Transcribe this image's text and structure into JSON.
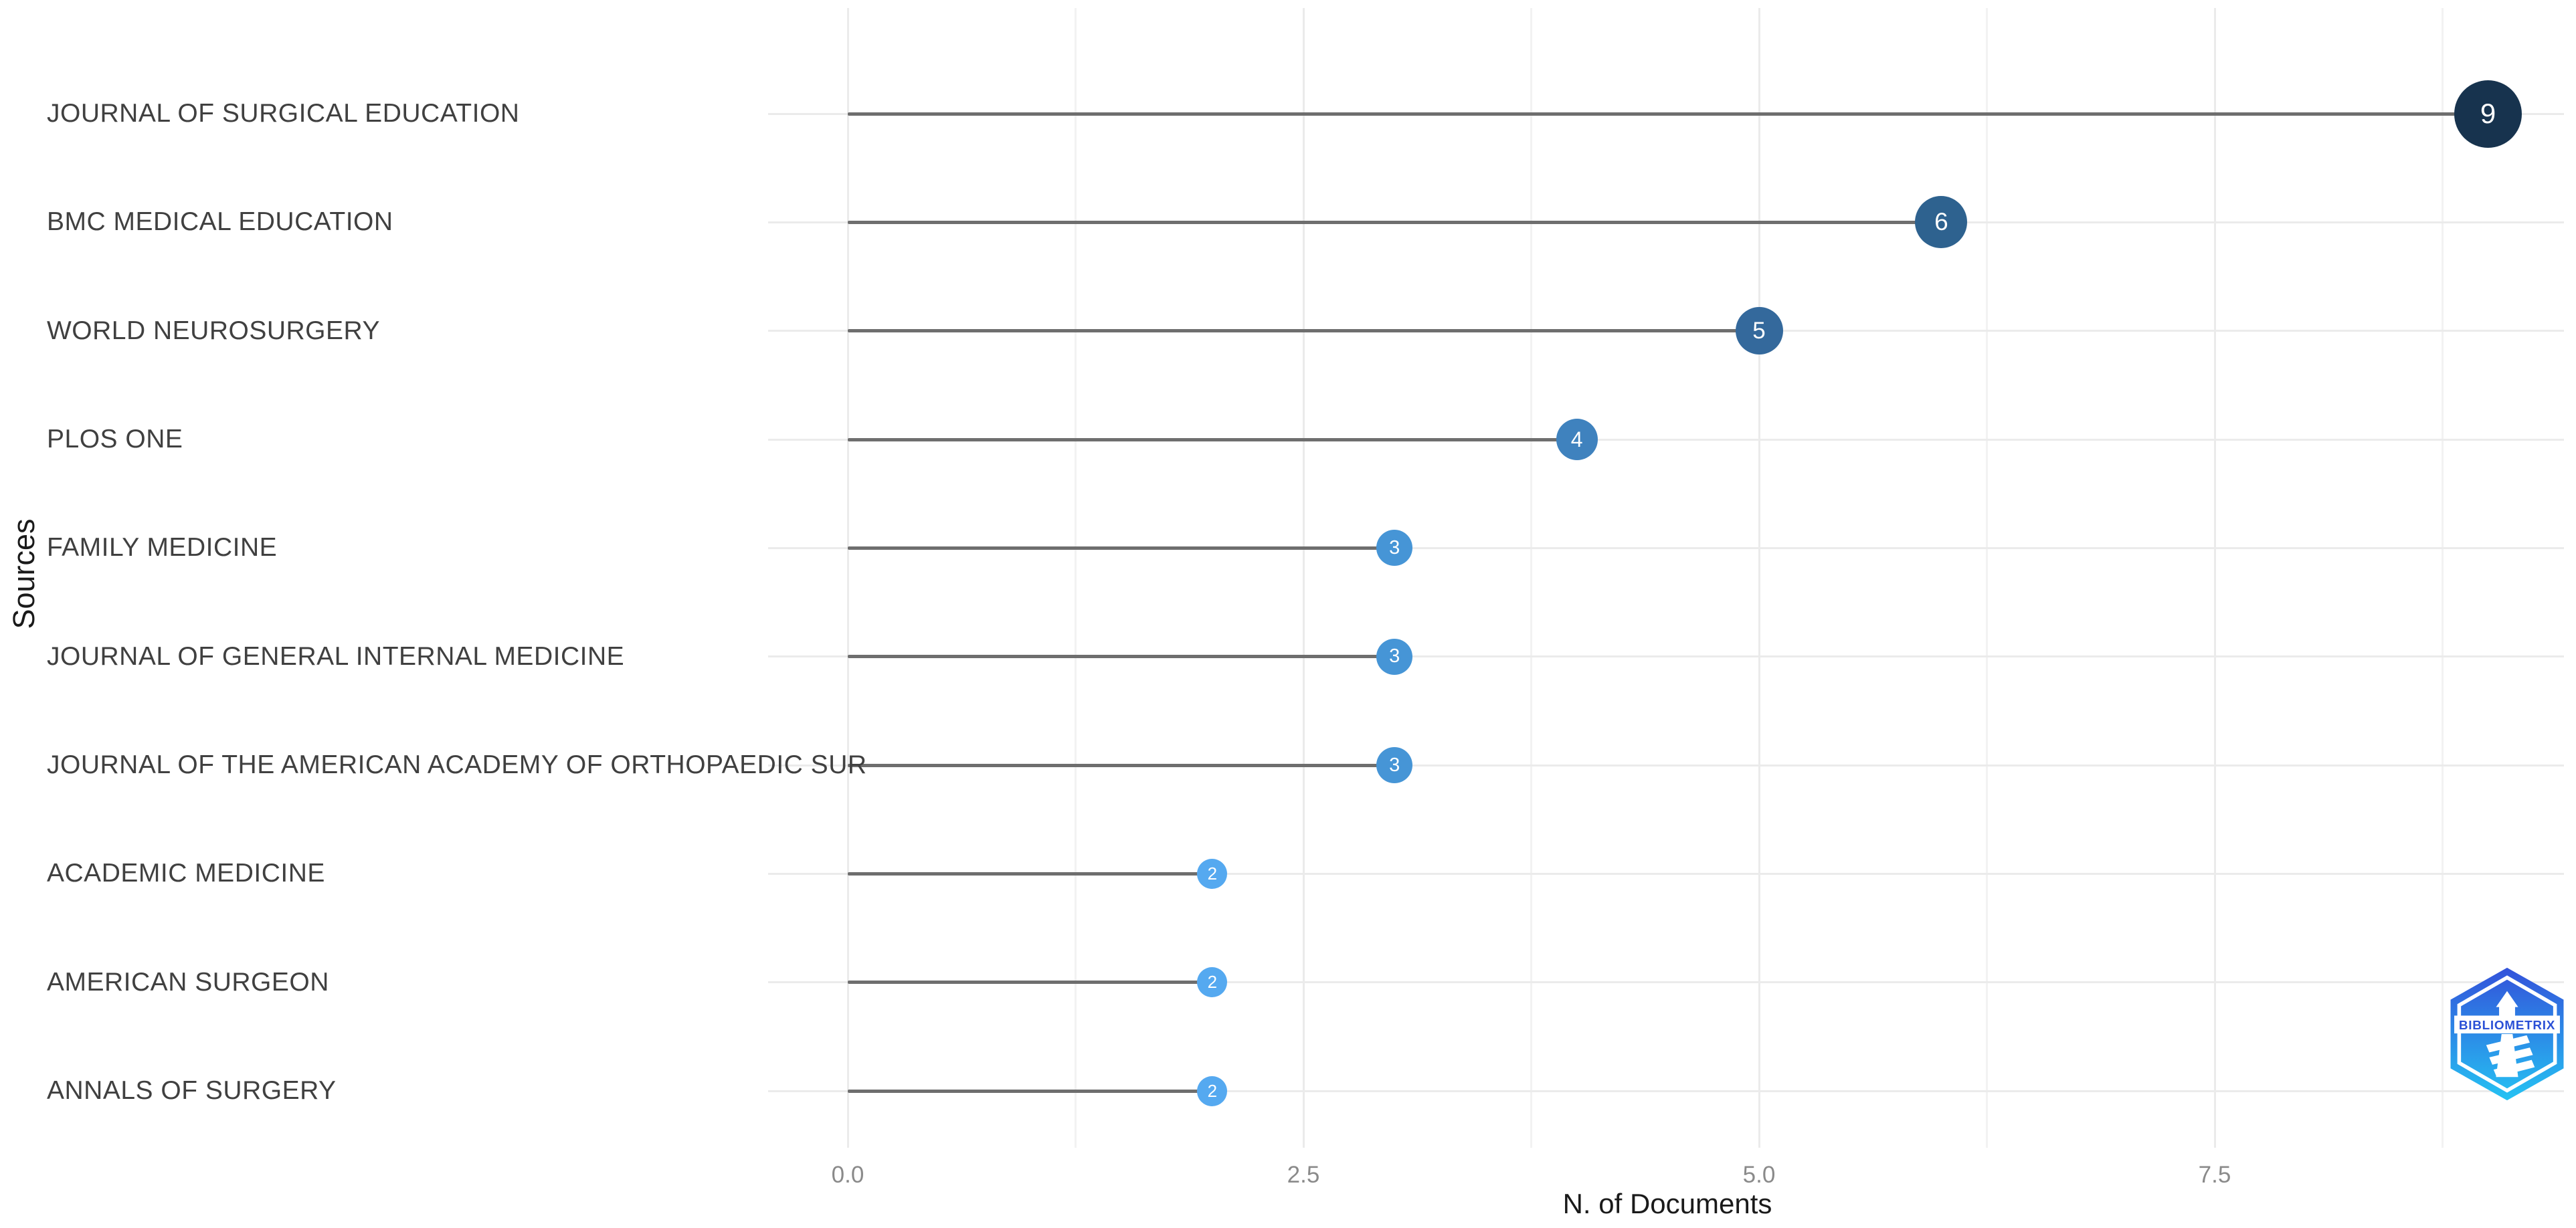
{
  "chart_data": {
    "type": "bar",
    "variant": "horizontal-lollipop",
    "title": "",
    "xlabel": "N. of Documents",
    "ylabel": "Sources",
    "categories": [
      "JOURNAL OF SURGICAL EDUCATION",
      "BMC MEDICAL EDUCATION",
      "WORLD NEUROSURGERY",
      "PLOS ONE",
      "FAMILY MEDICINE",
      "JOURNAL OF GENERAL INTERNAL MEDICINE",
      "JOURNAL OF THE AMERICAN ACADEMY OF ORTHOPAEDIC SUR",
      "ACADEMIC MEDICINE",
      "AMERICAN SURGEON",
      "ANNALS OF SURGERY"
    ],
    "values": [
      9,
      6,
      5,
      4,
      3,
      3,
      3,
      2,
      2,
      2
    ],
    "xlim": [
      0,
      9.4
    ],
    "xticks": [
      {
        "value": 0,
        "label": "0.0"
      },
      {
        "value": 2.5,
        "label": "2.5"
      },
      {
        "value": 5,
        "label": "5.0"
      },
      {
        "value": 7.5,
        "label": "7.5"
      }
    ],
    "minor_xticks": [
      1.25,
      3.75,
      6.25,
      8.75
    ],
    "grid": true,
    "legend": "none",
    "point_style_by_value": {
      "2": {
        "color": "#55A9F0",
        "diameter": 45,
        "font_size": 26
      },
      "3": {
        "color": "#4695D6",
        "diameter": 54,
        "font_size": 29
      },
      "4": {
        "color": "#3F82BE",
        "diameter": 62,
        "font_size": 32
      },
      "5": {
        "color": "#34699C",
        "diameter": 71,
        "font_size": 35
      },
      "6": {
        "color": "#2E628F",
        "diameter": 78,
        "font_size": 37
      },
      "9": {
        "color": "#17334E",
        "diameter": 101,
        "font_size": 42
      }
    },
    "colors": {
      "stem": "#6E6E6E",
      "grid_major": "#EBEBEB",
      "grid_minor": "#F2F2F2",
      "category_label": "#404040",
      "tick_label": "#8A8A8A",
      "axis_title": "#1A1A1A"
    }
  },
  "watermark": {
    "text": "BIBLIOMETRIX",
    "colors": {
      "hex_top": "#3352DA",
      "hex_bottom": "#25C3F3",
      "band_text": "#2B50D6"
    }
  }
}
